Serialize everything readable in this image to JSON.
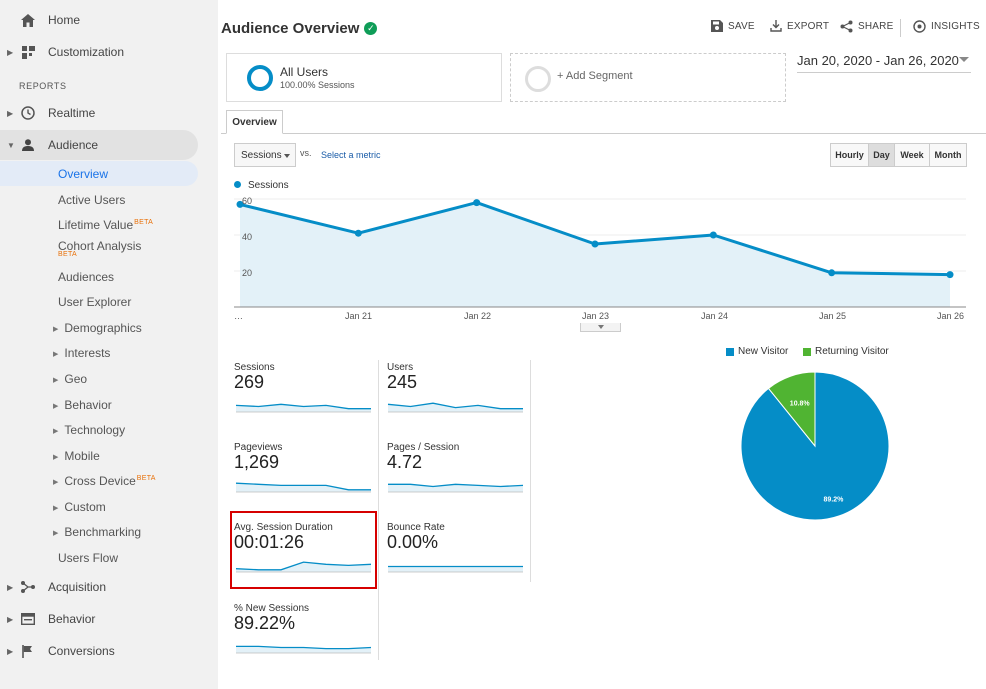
{
  "sidebar": {
    "home": "Home",
    "customization": "Customization",
    "reports_header": "REPORTS",
    "realtime": "Realtime",
    "audience": "Audience",
    "audience_items": {
      "overview": "Overview",
      "active_users": "Active Users",
      "lifetime_value": "Lifetime Value",
      "cohort_analysis": "Cohort Analysis",
      "audiences": "Audiences",
      "user_explorer": "User Explorer",
      "demographics": "Demographics",
      "interests": "Interests",
      "geo": "Geo",
      "behavior": "Behavior",
      "technology": "Technology",
      "mobile": "Mobile",
      "cross_device": "Cross Device",
      "custom": "Custom",
      "benchmarking": "Benchmarking",
      "users_flow": "Users Flow"
    },
    "beta_label": "BETA",
    "acquisition": "Acquisition",
    "behavior": "Behavior",
    "conversions": "Conversions"
  },
  "header": {
    "title": "Audience Overview",
    "save": "SAVE",
    "export": "EXPORT",
    "share": "SHARE",
    "insights": "INSIGHTS"
  },
  "segments": {
    "all_users": "All Users",
    "all_users_sub": "100.00% Sessions",
    "add_segment": "+ Add Segment"
  },
  "date_range": "Jan 20, 2020 - Jan 26, 2020",
  "tabs": {
    "overview": "Overview"
  },
  "controls": {
    "metric": "Sessions",
    "vs": "vs.",
    "select_metric": "Select a metric",
    "granularity": [
      "Hourly",
      "Day",
      "Week",
      "Month"
    ],
    "selected_granularity": "Day"
  },
  "chart_data": [
    {
      "type": "line",
      "series": [
        {
          "name": "Sessions",
          "values": [
            57,
            41,
            58,
            35,
            40,
            19,
            18
          ]
        }
      ],
      "x": [
        "…",
        "Jan 21",
        "Jan 22",
        "Jan 23",
        "Jan 24",
        "Jan 25",
        "Jan 26"
      ],
      "y_ticks": [
        "60",
        "40",
        "20"
      ],
      "ylim": [
        0,
        60
      ],
      "color": "#058dc7"
    },
    {
      "type": "pie",
      "labels": [
        "New Visitor",
        "Returning Visitor"
      ],
      "values": [
        89.2,
        10.8
      ],
      "value_labels": [
        "89.2%",
        "10.8%"
      ],
      "colors": [
        "#058dc7",
        "#50b432"
      ]
    }
  ],
  "metrics": [
    {
      "label": "Sessions",
      "value": "269",
      "spark": [
        6,
        5,
        7,
        5,
        6,
        3,
        3
      ]
    },
    {
      "label": "Users",
      "value": "245",
      "spark": [
        7,
        5,
        8,
        4,
        6,
        3,
        3
      ]
    },
    {
      "label": "Pageviews",
      "value": "1,269",
      "spark": [
        8,
        7,
        6,
        6,
        6,
        2,
        2
      ]
    },
    {
      "label": "Pages / Session",
      "value": "4.72",
      "spark": [
        7,
        7,
        5,
        7,
        6,
        5,
        6
      ]
    },
    {
      "label": "Avg. Session Duration",
      "value": "00:01:26",
      "spark": [
        3,
        2,
        2,
        9,
        7,
        6,
        7
      ]
    },
    {
      "label": "Bounce Rate",
      "value": "0.00%",
      "spark": [
        5,
        5,
        5,
        5,
        5,
        5,
        5
      ]
    },
    {
      "label": "% New Sessions",
      "value": "89.22%",
      "spark": [
        6,
        6,
        5,
        5,
        4,
        4,
        5
      ]
    }
  ]
}
